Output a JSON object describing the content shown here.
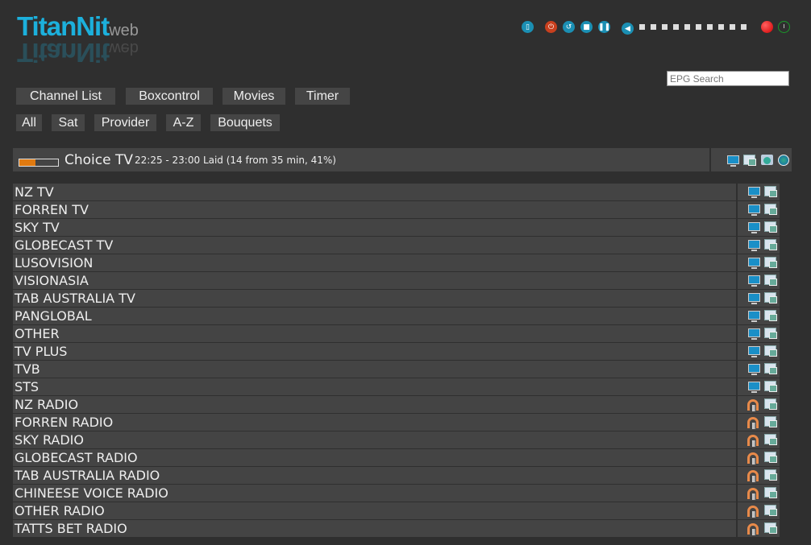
{
  "logo": {
    "brand": "TitanNit",
    "suffix": "web"
  },
  "controls": [
    {
      "name": "remote-icon"
    },
    {
      "name": "power-icon",
      "color": "#c8401e"
    },
    {
      "name": "restart-icon"
    },
    {
      "name": "stop-icon"
    },
    {
      "name": "pause-icon"
    },
    {
      "name": "volume-icon"
    }
  ],
  "volume": {
    "steps": 10,
    "record_color": "#e01010",
    "signal_color": "#1a9a2a"
  },
  "search": {
    "placeholder": "EPG Search"
  },
  "nav": [
    "Channel List",
    "Boxcontrol",
    "Movies",
    "Timer"
  ],
  "filters": [
    "All",
    "Sat",
    "Provider",
    "A-Z",
    "Bouquets"
  ],
  "now_playing": {
    "channel": "Choice TV",
    "info": "22:25 - 23:00 Laid (14 from 35 min, 41%)",
    "progress": 41
  },
  "bouquets": [
    {
      "name": "NZ TV",
      "type": "tv"
    },
    {
      "name": "FORREN TV",
      "type": "tv"
    },
    {
      "name": "SKY TV",
      "type": "tv"
    },
    {
      "name": "GLOBECAST TV",
      "type": "tv"
    },
    {
      "name": "LUSOVISION",
      "type": "tv"
    },
    {
      "name": "VISIONASIA",
      "type": "tv"
    },
    {
      "name": "TAB AUSTRALIA TV",
      "type": "tv"
    },
    {
      "name": "PANGLOBAL",
      "type": "tv"
    },
    {
      "name": "OTHER",
      "type": "tv"
    },
    {
      "name": "TV PLUS",
      "type": "tv"
    },
    {
      "name": "TVB",
      "type": "tv"
    },
    {
      "name": "STS",
      "type": "tv"
    },
    {
      "name": "NZ RADIO",
      "type": "radio"
    },
    {
      "name": "FORREN RADIO",
      "type": "radio"
    },
    {
      "name": "SKY RADIO",
      "type": "radio"
    },
    {
      "name": "GLOBECAST RADIO",
      "type": "radio"
    },
    {
      "name": "TAB AUSTRALIA RADIO",
      "type": "radio"
    },
    {
      "name": "CHINEESE VOICE RADIO",
      "type": "radio"
    },
    {
      "name": "OTHER RADIO",
      "type": "radio"
    },
    {
      "name": "TATTS BET RADIO",
      "type": "radio"
    }
  ]
}
